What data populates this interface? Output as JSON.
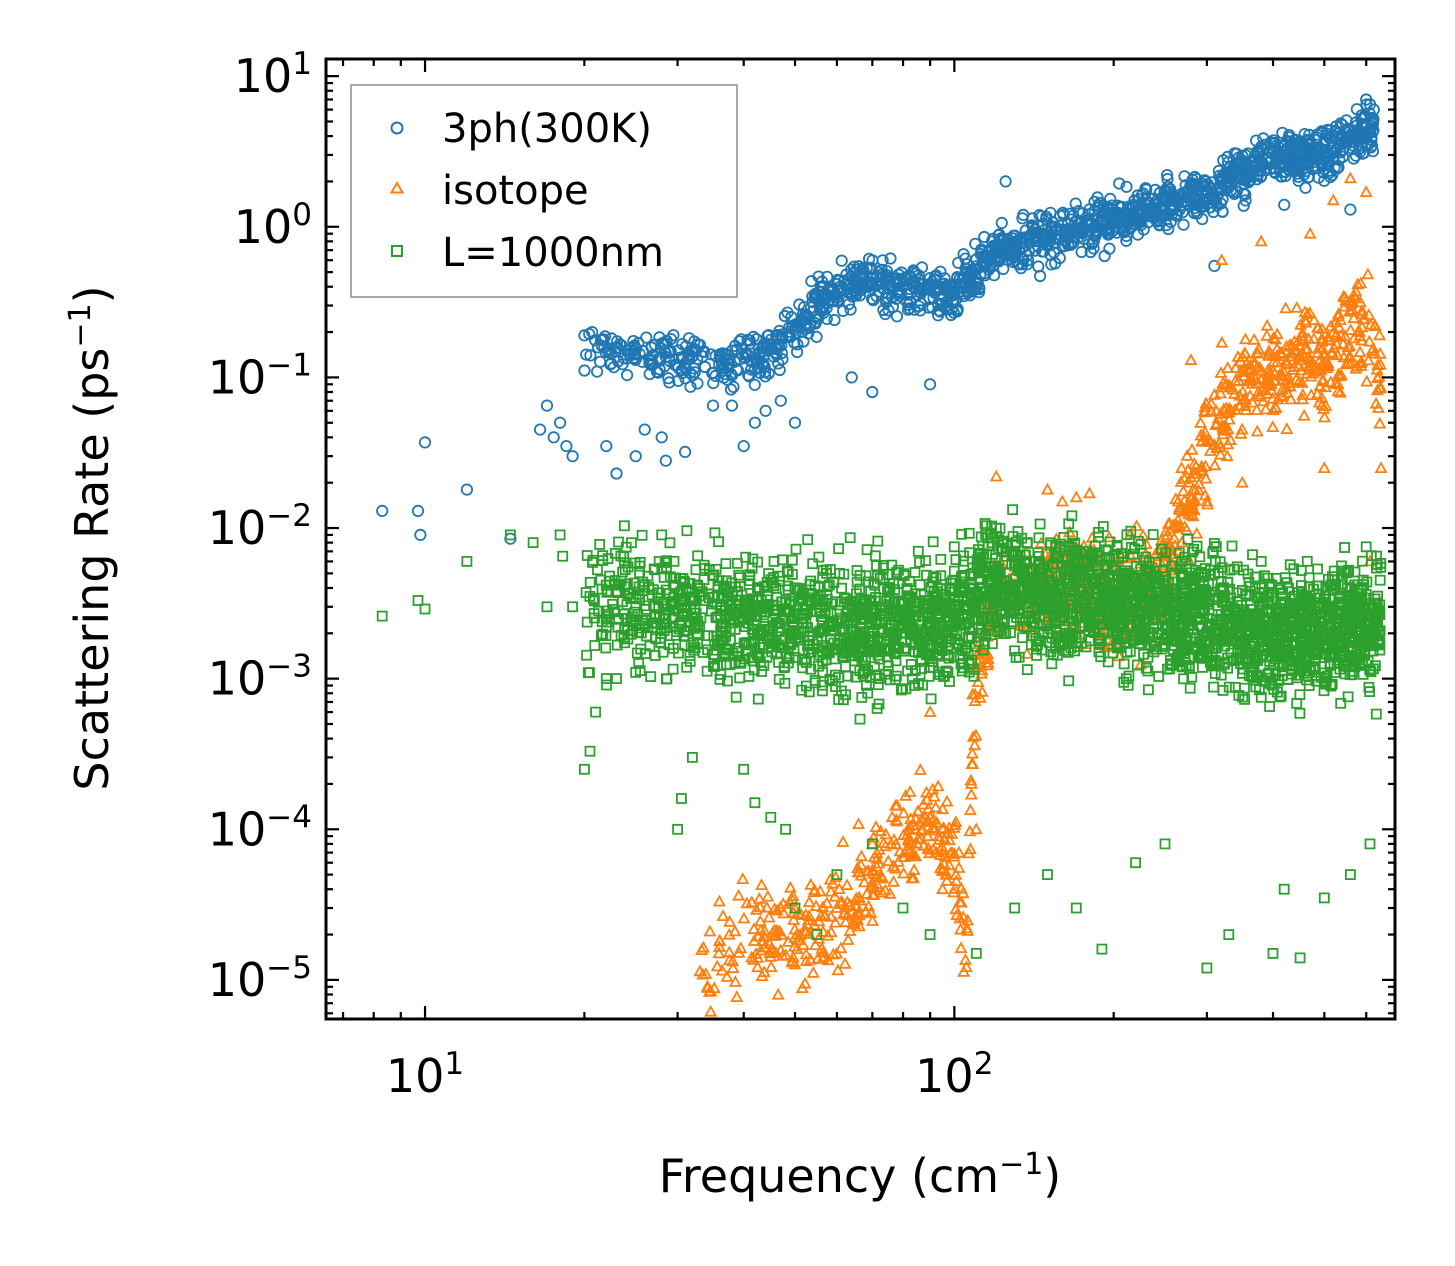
{
  "chart_data": {
    "type": "scatter",
    "title": "",
    "xlabel": {
      "base": "Frequency (cm",
      "exp": "−1",
      "tail": ")"
    },
    "ylabel": {
      "base": "Scattering Rate (ps",
      "exp": "−1",
      "tail": ")"
    },
    "xscale": "log",
    "yscale": "log",
    "xlim": [
      6.5,
      680
    ],
    "ylim": [
      5.5e-06,
      13
    ],
    "xticks": [
      {
        "value": 10,
        "base": "10",
        "exp": "1"
      },
      {
        "value": 100,
        "base": "10",
        "exp": "2"
      }
    ],
    "yticks": [
      {
        "value": 10,
        "base": "10",
        "exp": "1"
      },
      {
        "value": 1,
        "base": "10",
        "exp": "0"
      },
      {
        "value": 0.1,
        "base": "10",
        "exp": "−1"
      },
      {
        "value": 0.01,
        "base": "10",
        "exp": "−2"
      },
      {
        "value": 0.001,
        "base": "10",
        "exp": "−3"
      },
      {
        "value": 0.0001,
        "base": "10",
        "exp": "−4"
      },
      {
        "value": 1e-05,
        "base": "10",
        "exp": "−5"
      }
    ],
    "legend_position": "top-left",
    "series": [
      {
        "name": "3ph(300K)",
        "marker": "circle",
        "color": "#1f77b4",
        "trend": [
          [
            20,
            0.16
          ],
          [
            28,
            0.14
          ],
          [
            35,
            0.12
          ],
          [
            45,
            0.14
          ],
          [
            55,
            0.3
          ],
          [
            65,
            0.45
          ],
          [
            80,
            0.4
          ],
          [
            100,
            0.35
          ],
          [
            120,
            0.7
          ],
          [
            150,
            0.85
          ],
          [
            200,
            1.1
          ],
          [
            300,
            1.7
          ],
          [
            400,
            2.8
          ],
          [
            500,
            3.0
          ],
          [
            620,
            4.5
          ]
        ],
        "spread_decades": 0.15,
        "extra_points": [
          [
            8.3,
            0.013
          ],
          [
            9.7,
            0.013
          ],
          [
            9.8,
            0.009
          ],
          [
            10,
            0.037
          ],
          [
            12,
            0.018
          ],
          [
            14.5,
            0.0085
          ],
          [
            16.5,
            0.045
          ],
          [
            17,
            0.065
          ],
          [
            17.5,
            0.04
          ],
          [
            18,
            0.05
          ],
          [
            18.5,
            0.035
          ],
          [
            19,
            0.03
          ],
          [
            20,
            0.19
          ],
          [
            22,
            0.035
          ],
          [
            23,
            0.023
          ],
          [
            25,
            0.03
          ],
          [
            26,
            0.045
          ],
          [
            28,
            0.04
          ],
          [
            28.5,
            0.028
          ],
          [
            31,
            0.032
          ],
          [
            35,
            0.065
          ],
          [
            38,
            0.065
          ],
          [
            40,
            0.035
          ],
          [
            42,
            0.05
          ],
          [
            44,
            0.06
          ],
          [
            47,
            0.07
          ],
          [
            50,
            0.05
          ],
          [
            64,
            0.1
          ],
          [
            70,
            0.08
          ],
          [
            90,
            0.09
          ],
          [
            125,
            2.0
          ],
          [
            135,
            1.2
          ],
          [
            310,
            0.55
          ],
          [
            420,
            1.4
          ],
          [
            560,
            1.3
          ],
          [
            600,
            7.0
          ],
          [
            610,
            6.5
          ],
          [
            620,
            6.0
          ]
        ],
        "point_count": 1500,
        "seed": 11
      },
      {
        "name": "isotope",
        "marker": "triangle",
        "color": "#ff7f0e",
        "trend": [
          [
            33,
            1e-05
          ],
          [
            40,
            1.8e-05
          ],
          [
            50,
            2e-05
          ],
          [
            60,
            2.5e-05
          ],
          [
            70,
            5e-05
          ],
          [
            80,
            9e-05
          ],
          [
            90,
            0.00012
          ],
          [
            100,
            6e-05
          ],
          [
            105,
            1.5e-05
          ],
          [
            110,
            0.001
          ],
          [
            120,
            0.004
          ],
          [
            140,
            0.0035
          ],
          [
            160,
            0.0045
          ],
          [
            180,
            0.0045
          ],
          [
            200,
            0.003
          ],
          [
            250,
            0.005
          ],
          [
            300,
            0.035
          ],
          [
            350,
            0.1
          ],
          [
            400,
            0.1
          ],
          [
            450,
            0.15
          ],
          [
            500,
            0.12
          ],
          [
            550,
            0.2
          ],
          [
            600,
            0.2
          ],
          [
            640,
            0.1
          ]
        ],
        "spread_decades": 0.32,
        "extra_points": [
          [
            120,
            0.022
          ],
          [
            150,
            0.018
          ],
          [
            160,
            0.015
          ],
          [
            170,
            0.016
          ],
          [
            180,
            0.017
          ],
          [
            280,
            0.13
          ],
          [
            320,
            0.6
          ],
          [
            380,
            0.8
          ],
          [
            470,
            0.9
          ],
          [
            520,
            1.5
          ],
          [
            560,
            2.1
          ],
          [
            600,
            1.7
          ],
          [
            640,
            0.025
          ],
          [
            610,
            0.006
          ],
          [
            500,
            0.025
          ],
          [
            350,
            0.02
          ],
          [
            300,
            0.015
          ],
          [
            90,
            0.0006
          ],
          [
            95,
            4e-05
          ],
          [
            110,
            0.0001
          ],
          [
            70,
            8e-05
          ],
          [
            60,
            3e-05
          ]
        ],
        "point_count": 1200,
        "seed": 23
      },
      {
        "name": "L=1000nm",
        "marker": "square",
        "color": "#2ca02c",
        "trend": [
          [
            20,
            0.0035
          ],
          [
            30,
            0.003
          ],
          [
            40,
            0.0025
          ],
          [
            60,
            0.0022
          ],
          [
            80,
            0.0022
          ],
          [
            100,
            0.0025
          ],
          [
            120,
            0.0045
          ],
          [
            140,
            0.0035
          ],
          [
            180,
            0.0035
          ],
          [
            220,
            0.003
          ],
          [
            300,
            0.0025
          ],
          [
            400,
            0.002
          ],
          [
            500,
            0.002
          ],
          [
            640,
            0.0025
          ]
        ],
        "spread_decades": 0.38,
        "extra_points": [
          [
            8.3,
            0.0026
          ],
          [
            9.7,
            0.0033
          ],
          [
            10,
            0.0029
          ],
          [
            12,
            0.006
          ],
          [
            14.5,
            0.009
          ],
          [
            16,
            0.008
          ],
          [
            17,
            0.003
          ],
          [
            18,
            0.009
          ],
          [
            18.2,
            0.0065
          ],
          [
            19,
            0.003
          ],
          [
            20,
            0.00025
          ],
          [
            20.5,
            0.00033
          ],
          [
            21,
            0.0006
          ],
          [
            22,
            0.001
          ],
          [
            23,
            0.001
          ],
          [
            25,
            0.0011
          ],
          [
            28,
            0.009
          ],
          [
            30,
            0.0001
          ],
          [
            30.5,
            0.00016
          ],
          [
            32,
            0.0003
          ],
          [
            40,
            0.00025
          ],
          [
            42,
            0.00015
          ],
          [
            45,
            0.00012
          ],
          [
            48,
            0.0001
          ],
          [
            50,
            3e-05
          ],
          [
            55,
            2e-05
          ],
          [
            60,
            5e-05
          ],
          [
            70,
            8e-05
          ],
          [
            80,
            3e-05
          ],
          [
            90,
            2e-05
          ],
          [
            110,
            1.5e-05
          ],
          [
            130,
            3e-05
          ],
          [
            150,
            5e-05
          ],
          [
            170,
            3e-05
          ],
          [
            190,
            1.6e-05
          ],
          [
            220,
            6e-05
          ],
          [
            250,
            8e-05
          ],
          [
            300,
            1.2e-05
          ],
          [
            330,
            2e-05
          ],
          [
            400,
            1.5e-05
          ],
          [
            420,
            4e-05
          ],
          [
            450,
            1.4e-05
          ],
          [
            500,
            3.5e-05
          ],
          [
            560,
            5e-05
          ],
          [
            610,
            8e-05
          ],
          [
            100,
            0.0075
          ],
          [
            120,
            0.01
          ],
          [
            200,
            0.0065
          ],
          [
            380,
            0.006
          ],
          [
            600,
            0.0075
          ]
        ],
        "point_count": 3200,
        "seed": 37
      }
    ]
  }
}
